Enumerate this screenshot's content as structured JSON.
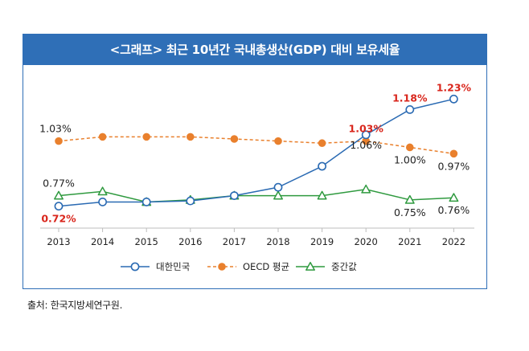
{
  "title": "<그래프> 최근 10년간 국내총생산(GDP) 대비 보유세율",
  "source": "출처: 한국지방세연구원.",
  "colors": {
    "korea": "#2a6ab3",
    "oecd": "#e9802d",
    "median": "#2f9a3f",
    "highlight": "#d9261c",
    "title_bg": "#2f6fb7"
  },
  "chart_data": {
    "type": "line",
    "categories": [
      "2013",
      "2014",
      "2015",
      "2016",
      "2017",
      "2018",
      "2019",
      "2020",
      "2021",
      "2022"
    ],
    "series": [
      {
        "name": "대한민국",
        "marker": "circle-open",
        "line": "solid",
        "values": [
          0.72,
          0.74,
          0.74,
          0.745,
          0.77,
          0.81,
          0.91,
          1.06,
          1.18,
          1.23
        ]
      },
      {
        "name": "OECD 평균",
        "marker": "circle-filled",
        "line": "dashed",
        "values": [
          1.03,
          1.05,
          1.05,
          1.05,
          1.04,
          1.03,
          1.02,
          1.03,
          1.0,
          0.97
        ]
      },
      {
        "name": "중간값",
        "marker": "triangle-open",
        "line": "solid",
        "values": [
          0.77,
          0.79,
          0.74,
          0.75,
          0.77,
          0.77,
          0.77,
          0.8,
          0.75,
          0.76
        ]
      }
    ],
    "annotations": [
      {
        "series": 0,
        "index": 0,
        "text": "0.72%",
        "color": "highlight"
      },
      {
        "series": 0,
        "index": 7,
        "text": "1.06%",
        "color": "normal"
      },
      {
        "series": 0,
        "index": 8,
        "text": "1.18%",
        "color": "highlight"
      },
      {
        "series": 0,
        "index": 9,
        "text": "1.23%",
        "color": "highlight"
      },
      {
        "series": 1,
        "index": 0,
        "text": "1.03%",
        "color": "normal"
      },
      {
        "series": 1,
        "index": 7,
        "text": "1.03%",
        "color": "highlight"
      },
      {
        "series": 1,
        "index": 8,
        "text": "1.00%",
        "color": "normal"
      },
      {
        "series": 1,
        "index": 9,
        "text": "0.97%",
        "color": "normal"
      },
      {
        "series": 2,
        "index": 0,
        "text": "0.77%",
        "color": "normal"
      },
      {
        "series": 2,
        "index": 8,
        "text": "0.75%",
        "color": "normal"
      },
      {
        "series": 2,
        "index": 9,
        "text": "0.76%",
        "color": "normal"
      }
    ],
    "ylim": [
      0.65,
      1.3
    ],
    "grid": false,
    "legend_position": "bottom-center"
  }
}
